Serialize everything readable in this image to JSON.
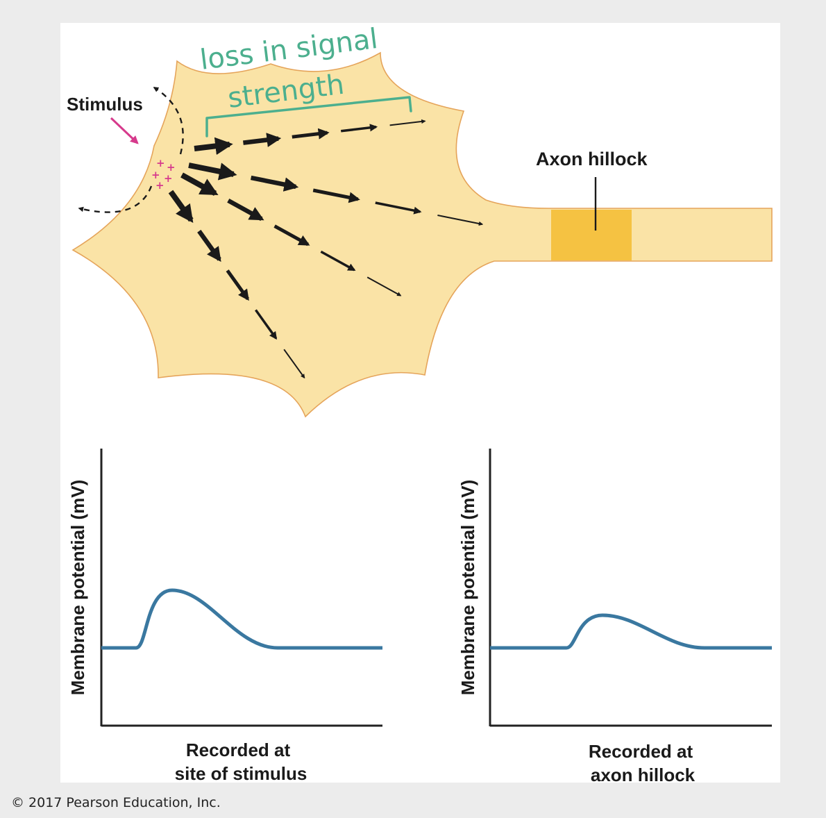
{
  "diagram": {
    "stimulus_label": "Stimulus",
    "axon_hillock_label": "Axon hillock",
    "annotation_line1": "loss in signal",
    "annotation_line2": "strength",
    "colors": {
      "cell_fill": "#fae3a6",
      "cell_stroke": "#e5a45a",
      "hillock_fill": "#f5c242",
      "arrow": "#1a1a1a",
      "stimulus_arrow": "#d63a8c",
      "plus_signs": "#d63a8c",
      "annotation": "#4caf8e",
      "trace": "#3a78a0"
    }
  },
  "graphs": [
    {
      "ylabel": "Membrane potential (mV)",
      "caption_line1": "Recorded at",
      "caption_line2": "site of stimulus"
    },
    {
      "ylabel": "Membrane potential (mV)",
      "caption_line1": "Recorded at",
      "caption_line2": "axon hillock"
    }
  ],
  "footer": {
    "copyright": "© 2017 Pearson Education, Inc."
  }
}
